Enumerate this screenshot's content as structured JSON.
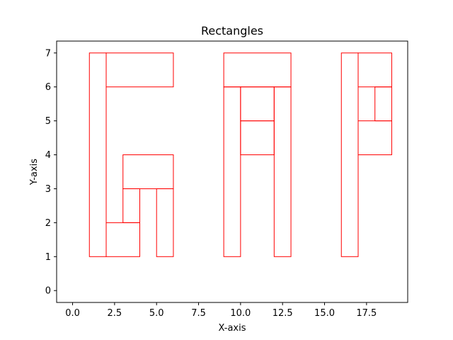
{
  "chart_data": {
    "type": "rectangles",
    "title": "Rectangles",
    "xlabel": "X-axis",
    "ylabel": "Y-axis",
    "xlim": [
      -0.95,
      19.95
    ],
    "ylim": [
      -0.35,
      7.35
    ],
    "xticks": [
      0,
      2.5,
      5,
      7.5,
      10,
      12.5,
      15,
      17.5
    ],
    "xtick_labels": [
      "0.0",
      "2.5",
      "5.0",
      "7.5",
      "10.0",
      "12.5",
      "15.0",
      "17.5"
    ],
    "yticks": [
      0,
      1,
      2,
      3,
      4,
      5,
      6,
      7
    ],
    "ytick_labels": [
      "0",
      "1",
      "2",
      "3",
      "4",
      "5",
      "6",
      "7"
    ],
    "grid": false,
    "edge_color": "#ff0000",
    "rectangles": [
      {
        "x": 1,
        "y": 1,
        "width": 1,
        "height": 6
      },
      {
        "x": 2,
        "y": 6,
        "width": 4,
        "height": 1
      },
      {
        "x": 2,
        "y": 1,
        "width": 2,
        "height": 1
      },
      {
        "x": 3,
        "y": 2,
        "width": 1,
        "height": 1
      },
      {
        "x": 3,
        "y": 3,
        "width": 3,
        "height": 1
      },
      {
        "x": 5,
        "y": 1,
        "width": 1,
        "height": 2
      },
      {
        "x": 9,
        "y": 6,
        "width": 4,
        "height": 1
      },
      {
        "x": 9,
        "y": 1,
        "width": 1,
        "height": 5
      },
      {
        "x": 12,
        "y": 1,
        "width": 1,
        "height": 5
      },
      {
        "x": 10,
        "y": 5,
        "width": 2,
        "height": 1
      },
      {
        "x": 10,
        "y": 4,
        "width": 2,
        "height": 1
      },
      {
        "x": 16,
        "y": 1,
        "width": 1,
        "height": 6
      },
      {
        "x": 17,
        "y": 6,
        "width": 2,
        "height": 1
      },
      {
        "x": 18,
        "y": 5,
        "width": 1,
        "height": 1
      },
      {
        "x": 17,
        "y": 4,
        "width": 2,
        "height": 1
      }
    ]
  }
}
